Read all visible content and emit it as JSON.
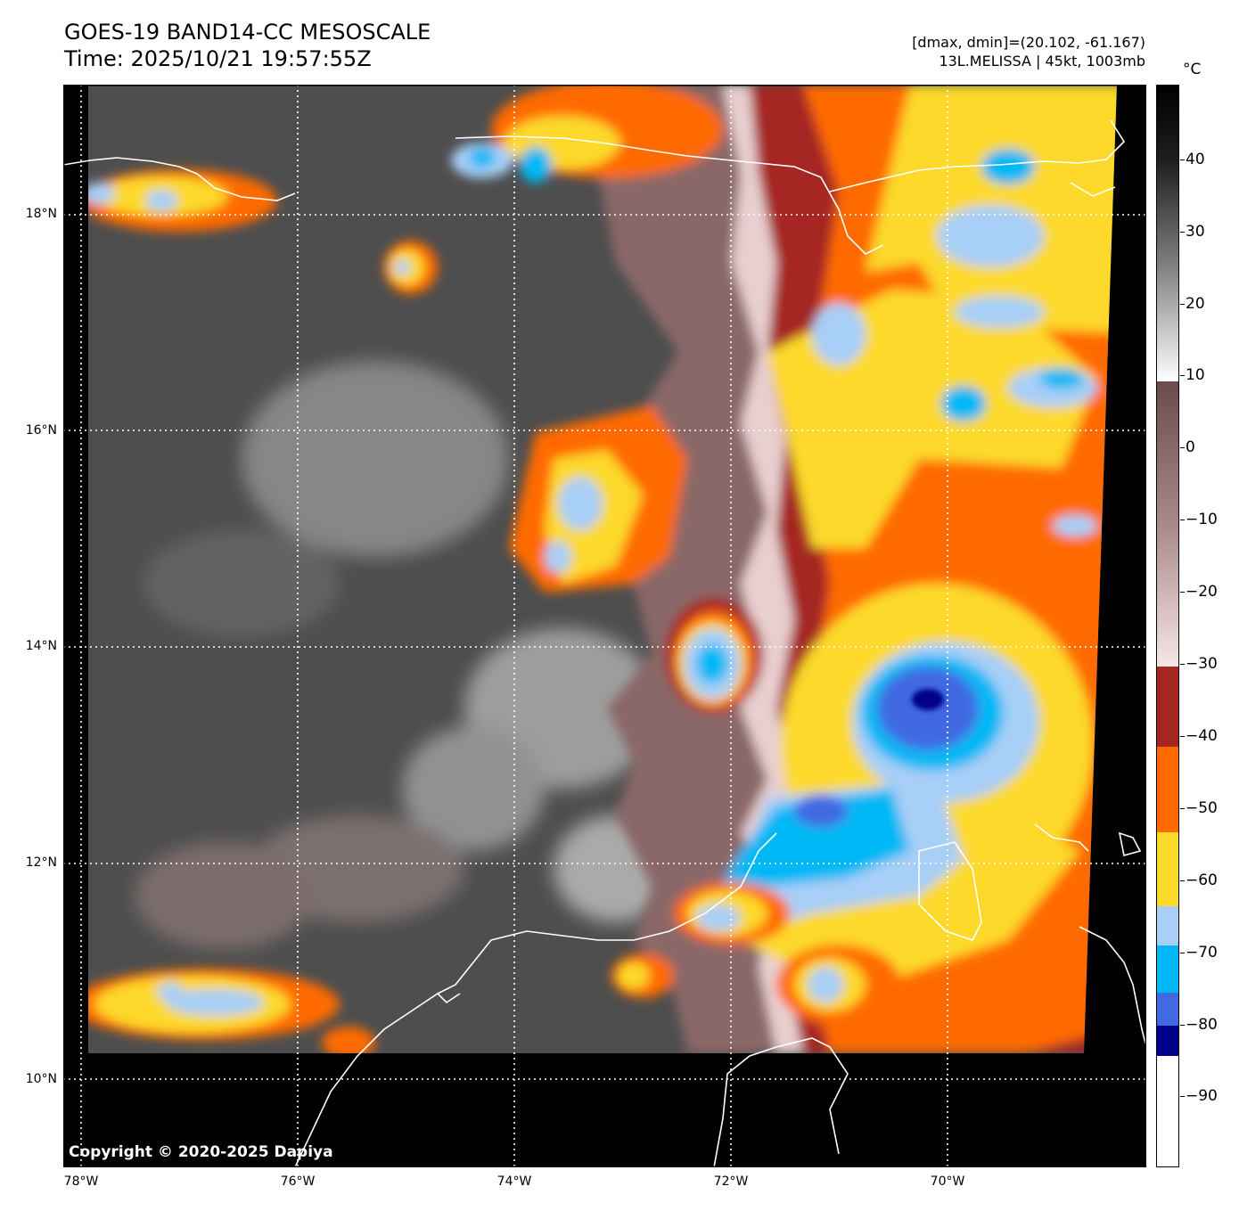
{
  "header": {
    "title": "GOES-19 BAND14-CC MESOSCALE",
    "time": "Time: 2025/10/21 19:57:55Z",
    "range_text": "[dmax, dmin]=(20.102, -61.167)",
    "storm_text": "13L.MELISSA | 45kt, 1003mb"
  },
  "map": {
    "lat_labels": [
      {
        "text": "18°N",
        "value": 18
      },
      {
        "text": "16°N",
        "value": 16
      },
      {
        "text": "14°N",
        "value": 14
      },
      {
        "text": "12°N",
        "value": 12
      },
      {
        "text": "10°N",
        "value": 10
      }
    ],
    "lon_labels": [
      {
        "text": "78°W",
        "value": -78
      },
      {
        "text": "76°W",
        "value": -76
      },
      {
        "text": "74°W",
        "value": -74
      },
      {
        "text": "72°W",
        "value": -72
      },
      {
        "text": "70°W",
        "value": -70
      }
    ],
    "lat_range": [
      9.2,
      19.2
    ],
    "lon_range": [
      -78.17,
      -68.17
    ],
    "grid": "dotted white",
    "storm_center": {
      "lat": 13.5,
      "lon": -70.0
    },
    "copyright": "Copyright © 2020-2025 Dapiya"
  },
  "colorbar": {
    "unit": "°C",
    "range": [
      -100,
      50
    ],
    "tick_labels": [
      "40",
      "30",
      "20",
      "10",
      "0",
      "−10",
      "−20",
      "−30",
      "−40",
      "−50",
      "−60",
      "−70",
      "−80",
      "−90"
    ],
    "tick_values": [
      40,
      30,
      20,
      10,
      0,
      -10,
      -20,
      -30,
      -40,
      -50,
      -60,
      -70,
      -80,
      -90
    ],
    "colors": {
      "warm_black": "#000000",
      "warm_gray": "#7f7f7f",
      "white": "#ffffff",
      "brown": "#8a6a6a",
      "pink": "#f3dfe0",
      "dark_red": "#a52722",
      "orange": "#ff6a00",
      "yellow": "#fcd92b",
      "light_blue": "#a7cff7",
      "cyan": "#00b8f5",
      "royal_blue": "#4169e1",
      "navy": "#00008b",
      "coldest": "#ffffff"
    }
  }
}
